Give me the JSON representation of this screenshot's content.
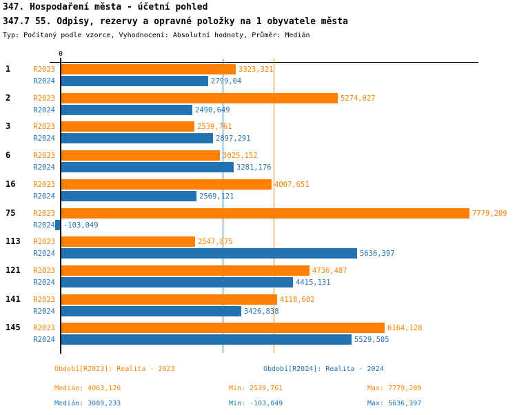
{
  "header": {
    "title": "347. Hospodaření města - účetní pohled",
    "subtitle": "347.7 55. Odpisy, rezervy a opravné položky na 1 obyvatele města",
    "meta": "Typ: Počítaný podle vzorce, Vyhodnocení: Absolutní hodnoty, Průměr: Medián"
  },
  "colors": {
    "r2023": "#FF8000",
    "r2024": "#2373B3",
    "axis": "#000000",
    "background": "#FFFFFF"
  },
  "chart_data": {
    "type": "bar",
    "orientation": "horizontal",
    "zero_label": "0",
    "categories": [
      "1",
      "2",
      "3",
      "6",
      "16",
      "75",
      "113",
      "121",
      "141",
      "145"
    ],
    "series": [
      {
        "name": "R2023",
        "color": "#FF8000",
        "values": [
          3323.321,
          5274.027,
          2539.761,
          3025.152,
          4007.651,
          7779.209,
          2547.875,
          4736.487,
          4118.602,
          6164.128
        ],
        "labels": [
          "3323,321",
          "5274,027",
          "2539,761",
          "3025,152",
          "4007,651",
          "7779,209",
          "2547,875",
          "4736,487",
          "4118,602",
          "6164,128"
        ]
      },
      {
        "name": "R2024",
        "color": "#2373B3",
        "values": [
          2799.04,
          2490.649,
          2897.291,
          3281.176,
          2569.121,
          -103.049,
          5636.397,
          4415.131,
          3426.838,
          5529.505
        ],
        "labels": [
          "2799,04",
          "2490,649",
          "2897,291",
          "3281,176",
          "2569,121",
          "-103,049",
          "5636,397",
          "4415,131",
          "3426,838",
          "5529,505"
        ]
      }
    ],
    "median_lines": [
      {
        "series": "R2023",
        "value": 4063.126,
        "color": "#FF8000"
      },
      {
        "series": "R2024",
        "value": 3089.233,
        "color": "#2373B3"
      }
    ],
    "xlim": [
      -150,
      7950
    ],
    "grid": false,
    "legend_position": "bottom"
  },
  "footer": {
    "r2023": {
      "period": "Období[R2023]: Realita - 2023",
      "median": "Medián: 4063,126",
      "min": "Min: 2539,761",
      "max": "Max: 7779,209"
    },
    "r2024": {
      "period": "Období[R2024]: Realita - 2024",
      "median": "Medián: 3089,233",
      "min": "Min: -103,049",
      "max": "Max: 5636,397"
    }
  }
}
